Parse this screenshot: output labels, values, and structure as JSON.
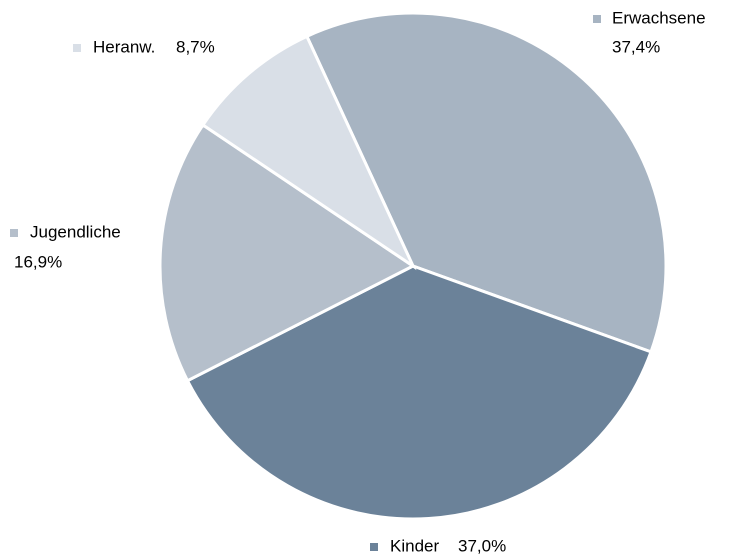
{
  "chart_data": {
    "type": "pie",
    "categories": [
      "Erwachsene",
      "Kinder",
      "Jugendliche",
      "Heranw."
    ],
    "values": [
      37.4,
      37.0,
      16.9,
      8.7
    ],
    "value_labels": [
      "37,4%",
      "37,0%",
      "16,9%",
      "8,7%"
    ],
    "colors": [
      "#a7b4c2",
      "#6b8299",
      "#b5bfcb",
      "#d9dfe7"
    ]
  }
}
